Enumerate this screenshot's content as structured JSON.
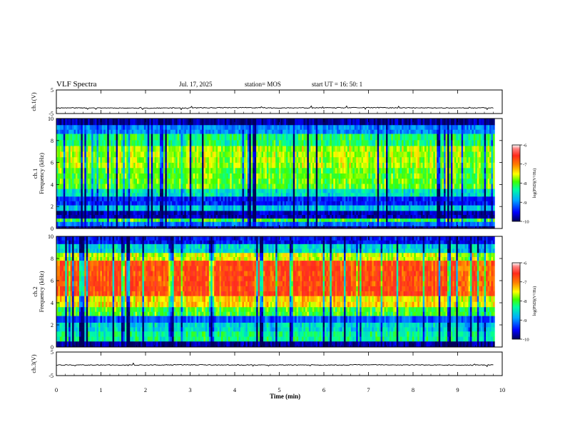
{
  "header": {
    "title": "VLF Spectra",
    "date": "Jul. 17, 2025",
    "station": "station= MOS",
    "start_ut": "start UT =   16: 50: 1"
  },
  "chart_data": [
    {
      "type": "line",
      "id": "ch1-waveform",
      "title": "",
      "ylabel": "ch.1(V)",
      "ylim": [
        -5,
        5
      ],
      "yticks": [
        "-5",
        "5"
      ],
      "xlim": [
        0,
        10
      ],
      "x": [
        0,
        1,
        2,
        3,
        4,
        5,
        6,
        7,
        8,
        9,
        9.8
      ],
      "values": [
        -2.6,
        -2.6,
        -2.7,
        -2.6,
        -2.5,
        -2.6,
        -2.6,
        -2.5,
        -2.6,
        -2.6,
        -2.6
      ]
    },
    {
      "type": "heatmap",
      "id": "ch1-spectrogram",
      "ylabel": "ch.1\nFrequency (kHz)",
      "ylim": [
        0,
        10
      ],
      "yticks": [
        "0",
        "2",
        "4",
        "6",
        "8",
        "10"
      ],
      "xlim": [
        0,
        10
      ],
      "colorbar": {
        "label": "log(PSD)(V²/Hz)",
        "range": [
          -10,
          -6
        ],
        "ticks": [
          "-6",
          "-7",
          "-8",
          "-9",
          "-10"
        ]
      },
      "bands_khz": [
        {
          "lo": 9.4,
          "hi": 10.0,
          "level": -9.8
        },
        {
          "lo": 8.6,
          "hi": 9.4,
          "level": -9.0
        },
        {
          "lo": 7.5,
          "hi": 8.6,
          "level": -8.2
        },
        {
          "lo": 5.5,
          "hi": 7.5,
          "level": -7.7
        },
        {
          "lo": 3.6,
          "hi": 5.5,
          "level": -7.9
        },
        {
          "lo": 2.9,
          "hi": 3.6,
          "level": -8.5
        },
        {
          "lo": 2.1,
          "hi": 2.9,
          "level": -9.4
        },
        {
          "lo": 1.6,
          "hi": 2.1,
          "level": -8.7
        },
        {
          "lo": 0.9,
          "hi": 1.6,
          "level": -9.7
        },
        {
          "lo": 0.6,
          "hi": 0.9,
          "level": -8.0
        },
        {
          "lo": 0.2,
          "hi": 0.6,
          "level": -9.1
        },
        {
          "lo": 0.0,
          "hi": 0.2,
          "level": -9.9
        }
      ]
    },
    {
      "type": "heatmap",
      "id": "ch2-spectrogram",
      "ylabel": "ch.2\nFrequency (kHz)",
      "ylim": [
        0,
        10
      ],
      "yticks": [
        "0",
        "2",
        "4",
        "6",
        "8",
        "10"
      ],
      "xlim": [
        0,
        10
      ],
      "colorbar": {
        "label": "log(PSD)(V²/Hz)",
        "range": [
          -10,
          -6
        ],
        "ticks": [
          "-6",
          "-7",
          "-8",
          "-9",
          "-10"
        ]
      },
      "bands_khz": [
        {
          "lo": 9.3,
          "hi": 10.0,
          "level": -9.5
        },
        {
          "lo": 8.5,
          "hi": 9.3,
          "level": -8.6
        },
        {
          "lo": 7.8,
          "hi": 8.5,
          "level": -7.6
        },
        {
          "lo": 4.6,
          "hi": 7.8,
          "level": -6.7
        },
        {
          "lo": 3.6,
          "hi": 4.6,
          "level": -7.4
        },
        {
          "lo": 2.8,
          "hi": 3.6,
          "level": -8.0
        },
        {
          "lo": 2.2,
          "hi": 2.8,
          "level": -9.2
        },
        {
          "lo": 1.4,
          "hi": 2.2,
          "level": -8.6
        },
        {
          "lo": 0.5,
          "hi": 1.4,
          "level": -8.3
        },
        {
          "lo": 0.0,
          "hi": 0.5,
          "level": -9.8
        }
      ]
    },
    {
      "type": "line",
      "id": "ch3-waveform",
      "ylabel": "ch.3(V)",
      "ylim": [
        -5,
        5
      ],
      "yticks": [
        "-5",
        "5"
      ],
      "xlim": [
        0,
        10
      ],
      "xlabel": "Time (min)",
      "xticks": [
        "0",
        "1",
        "2",
        "3",
        "4",
        "5",
        "6",
        "7",
        "8",
        "9",
        "10"
      ],
      "x": [
        0,
        1,
        2,
        3,
        4,
        5,
        6,
        7,
        8,
        9,
        9.8
      ],
      "values": [
        -0.5,
        -0.5,
        -0.5,
        -0.4,
        -0.5,
        -0.5,
        -0.5,
        -0.4,
        -0.5,
        -0.5,
        -0.5
      ]
    }
  ],
  "colors": {
    "colormap": [
      "#00005a",
      "#0000ff",
      "#00aaff",
      "#00ffa0",
      "#40ff00",
      "#ffff00",
      "#ff8000",
      "#ff2a1a",
      "#ff4040",
      "#ffffff"
    ],
    "trace": "#000000",
    "axis": "#000000"
  }
}
